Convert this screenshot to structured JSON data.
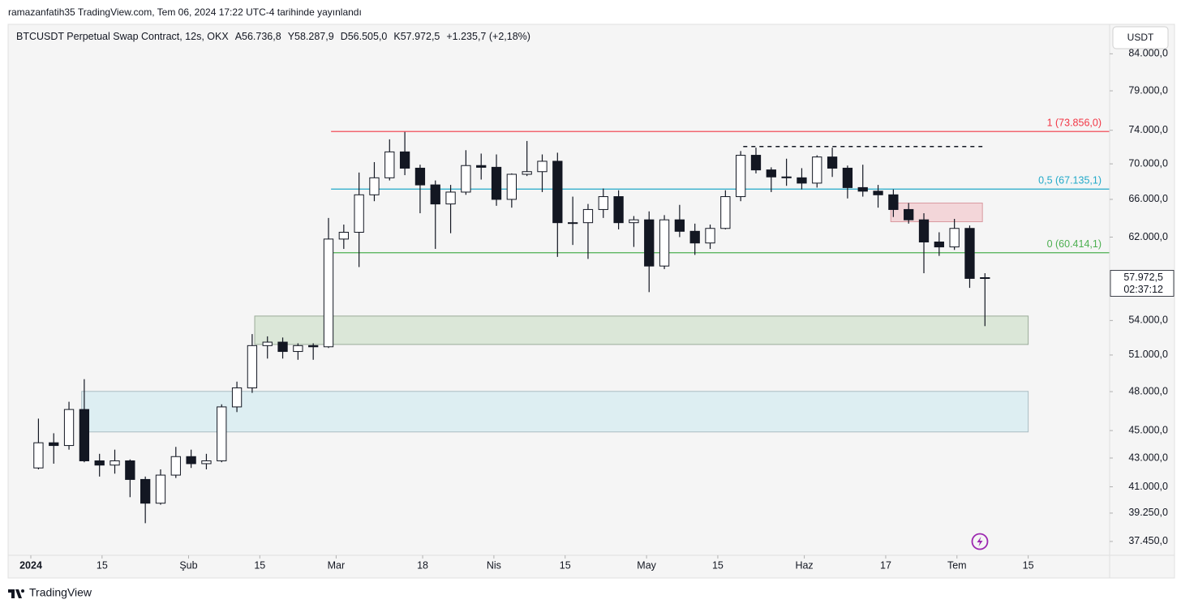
{
  "published": "ramazanfatih35 TradingView.com, Tem 06, 2024 17:22 UTC-4 tarihinde yayınlandı",
  "branding": "TradingView",
  "chart_data": {
    "type": "candlestick",
    "legend": {
      "symbol": "BTCUSDT Perpetual Swap Contract, 12s, OKX",
      "open": "A56.736,8",
      "high": "Y58.287,9",
      "low": "D56.505,0",
      "close": "K57.972,5",
      "change": "+1.235,7 (+2,18%)"
    },
    "currency": "USDT",
    "color": "#131722",
    "log_scale": true,
    "grid": false,
    "x": [
      "2024-01-01",
      "2024-01-04",
      "2024-01-07",
      "2024-01-10",
      "2024-01-13",
      "2024-01-16",
      "2024-01-19",
      "2024-01-22",
      "2024-01-25",
      "2024-01-28",
      "2024-01-31",
      "2024-02-03",
      "2024-02-06",
      "2024-02-09",
      "2024-02-12",
      "2024-02-15",
      "2024-02-18",
      "2024-02-21",
      "2024-02-24",
      "2024-02-27",
      "2024-03-01",
      "2024-03-04",
      "2024-03-07",
      "2024-03-10",
      "2024-03-13",
      "2024-03-16",
      "2024-03-19",
      "2024-03-22",
      "2024-03-25",
      "2024-03-28",
      "2024-03-31",
      "2024-04-03",
      "2024-04-06",
      "2024-04-09",
      "2024-04-12",
      "2024-04-15",
      "2024-04-18",
      "2024-04-21",
      "2024-04-24",
      "2024-04-27",
      "2024-04-30",
      "2024-05-03",
      "2024-05-06",
      "2024-05-09",
      "2024-05-12",
      "2024-05-15",
      "2024-05-18",
      "2024-05-21",
      "2024-05-24",
      "2024-05-27",
      "2024-05-30",
      "2024-06-02",
      "2024-06-05",
      "2024-06-08",
      "2024-06-11",
      "2024-06-14",
      "2024-06-17",
      "2024-06-20",
      "2024-06-23",
      "2024-06-26",
      "2024-06-29",
      "2024-07-02",
      "2024-07-05"
    ],
    "open": [
      42300,
      44100,
      43900,
      46600,
      42800,
      42500,
      42800,
      41500,
      39900,
      41800,
      43100,
      42600,
      42800,
      46800,
      48300,
      51800,
      52100,
      51300,
      51800,
      51700,
      61800,
      62500,
      66500,
      68400,
      71400,
      69500,
      67600,
      65500,
      66800,
      69800,
      69600,
      66000,
      68800,
      69100,
      70300,
      63500,
      63500,
      64900,
      66300,
      63500,
      63800,
      59100,
      63800,
      62600,
      61400,
      62900,
      66300,
      71000,
      69300,
      68500,
      68400,
      67800,
      70800,
      69500,
      67300,
      66900,
      66500,
      64900,
      63800,
      61500,
      61000,
      62900,
      57900
    ],
    "high": [
      45900,
      44800,
      47200,
      49000,
      43300,
      43600,
      42900,
      41700,
      42200,
      43800,
      43600,
      43300,
      47000,
      48800,
      52800,
      52600,
      52500,
      52000,
      52000,
      64000,
      63300,
      69000,
      70200,
      72900,
      73800,
      69900,
      68100,
      67600,
      71600,
      71200,
      71100,
      68900,
      72700,
      71100,
      71300,
      66300,
      65500,
      67200,
      67000,
      64200,
      64700,
      64300,
      65400,
      63400,
      63300,
      67000,
      71500,
      71900,
      69600,
      70600,
      69500,
      71000,
      71900,
      69800,
      69900,
      67600,
      67100,
      65600,
      64500,
      62500,
      63900,
      63200,
      58400
    ],
    "low": [
      42200,
      42600,
      43600,
      42700,
      41700,
      41900,
      40300,
      38600,
      39800,
      41600,
      42300,
      42200,
      42700,
      46400,
      47900,
      50700,
      50700,
      50600,
      50600,
      51600,
      60800,
      59000,
      65800,
      68100,
      68700,
      64500,
      60800,
      62400,
      66500,
      68200,
      65300,
      65100,
      68600,
      66800,
      60000,
      61200,
      59800,
      64000,
      62800,
      61000,
      56600,
      58800,
      62000,
      60200,
      60800,
      62800,
      65800,
      68900,
      66800,
      67500,
      67100,
      67300,
      68500,
      66100,
      66300,
      65100,
      64100,
      63400,
      58400,
      60100,
      60700,
      57000,
      53500
    ],
    "close": [
      44100,
      43900,
      46600,
      42800,
      42500,
      42800,
      41500,
      39900,
      41800,
      43100,
      42600,
      42800,
      46800,
      48300,
      51800,
      52100,
      51300,
      51800,
      51700,
      61800,
      62500,
      66500,
      68400,
      71400,
      69500,
      67600,
      65500,
      66800,
      69800,
      69600,
      66000,
      68800,
      69100,
      70300,
      63500,
      63500,
      64900,
      66300,
      63500,
      63800,
      59100,
      63800,
      62600,
      61400,
      62900,
      66300,
      71000,
      69300,
      68500,
      68400,
      67800,
      70800,
      69500,
      67300,
      66900,
      66500,
      64900,
      63800,
      61500,
      61000,
      62900,
      57900,
      57972.5
    ],
    "xlim": [
      "2024-01-01",
      "2024-07-31"
    ],
    "xticks": [
      {
        "value": "2024-01-01",
        "label": "2024"
      },
      {
        "value": "2024-01-15",
        "label": "15"
      },
      {
        "value": "2024-02-01",
        "label": "Şub"
      },
      {
        "value": "2024-02-15",
        "label": "15"
      },
      {
        "value": "2024-03-01",
        "label": "Mar"
      },
      {
        "value": "2024-03-18",
        "label": "18"
      },
      {
        "value": "2024-04-01",
        "label": "Nis"
      },
      {
        "value": "2024-04-15",
        "label": "15"
      },
      {
        "value": "2024-05-01",
        "label": "May"
      },
      {
        "value": "2024-05-15",
        "label": "15"
      },
      {
        "value": "2024-06-01",
        "label": "Haz"
      },
      {
        "value": "2024-06-17",
        "label": "17"
      },
      {
        "value": "2024-07-01",
        "label": "Tem"
      },
      {
        "value": "2024-07-15",
        "label": "15"
      }
    ],
    "ylim": [
      36600,
      88200
    ],
    "yticks": [
      {
        "value": 84000,
        "label": "84.000,0"
      },
      {
        "value": 79000,
        "label": "79.000,0"
      },
      {
        "value": 74000,
        "label": "74.000,0"
      },
      {
        "value": 70000,
        "label": "70.000,0"
      },
      {
        "value": 66000,
        "label": "66.000,0"
      },
      {
        "value": 62000,
        "label": "62.000,0"
      },
      {
        "value": 54000,
        "label": "54.000,0"
      },
      {
        "value": 51000,
        "label": "51.000,0"
      },
      {
        "value": 48000,
        "label": "48.000,0"
      },
      {
        "value": 45000,
        "label": "45.000,0"
      },
      {
        "value": 43000,
        "label": "43.000,0"
      },
      {
        "value": 41000,
        "label": "41.000,0"
      },
      {
        "value": 39250,
        "label": "39.250,0"
      },
      {
        "value": 37450,
        "label": "37.450,0"
      }
    ],
    "last_price": {
      "value": 57972.5,
      "label": "57.972,5",
      "countdown": "02:37:12"
    },
    "fib_start": "2024-02-29",
    "fib_levels": [
      {
        "value": 73856.0,
        "label": "1 (73.856,0)",
        "color": "#f23645"
      },
      {
        "value": 67135.1,
        "label": "0,5 (67.135,1)",
        "color": "#22a9c9"
      },
      {
        "value": 60414.1,
        "label": "0 (60.414,1)",
        "color": "#4caf50"
      }
    ],
    "zones": [
      {
        "from": "2024-02-14",
        "to": "2024-07-15",
        "top": 54400,
        "bottom": 51900,
        "color": "#dbe7d8",
        "border": "#9aab98"
      },
      {
        "from": "2024-01-11",
        "to": "2024-07-15",
        "top": 48020,
        "bottom": 44900,
        "color": "#ddeef2",
        "border": "#a9bcc2"
      },
      {
        "from": "2024-06-18",
        "to": "2024-07-06",
        "top": 65600,
        "bottom": 63600,
        "color": "#f3d6d9",
        "border": "#d99aa0"
      }
    ],
    "dashed_level": {
      "from": "2024-05-20",
      "to": "2024-07-06",
      "value": 72040,
      "color": "#131722"
    }
  }
}
